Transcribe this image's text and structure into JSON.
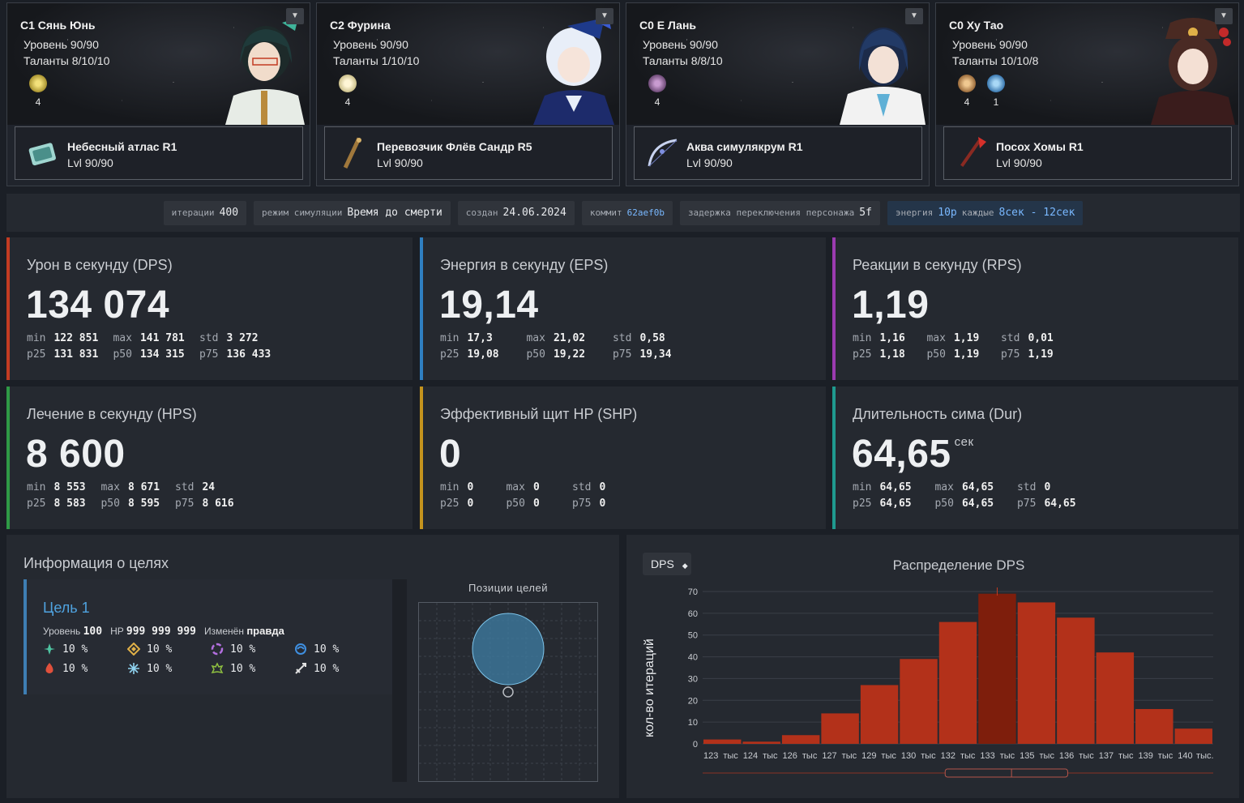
{
  "characters": [
    {
      "name": "C1 Сянь Юнь",
      "level": "Уровень 90/90",
      "talents": "Таланты 8/10/10",
      "sets": [
        {
          "count": "4",
          "color": "#d9c24a"
        }
      ],
      "weapon": {
        "name": "Небесный атлас R1",
        "level": "Lvl 90/90"
      }
    },
    {
      "name": "C2 Фурина",
      "level": "Уровень 90/90",
      "talents": "Таланты 1/10/10",
      "sets": [
        {
          "count": "4",
          "color": "#e8dfb8"
        }
      ],
      "weapon": {
        "name": "Перевозчик Флёв Сандр R5",
        "level": "Lvl 90/90"
      }
    },
    {
      "name": "C0 Е Лань",
      "level": "Уровень 90/90",
      "talents": "Таланты 8/8/10",
      "sets": [
        {
          "count": "4",
          "color": "#a87bb3"
        }
      ],
      "weapon": {
        "name": "Аква симулякрум R1",
        "level": "Lvl 90/90"
      }
    },
    {
      "name": "C0 Ху Тао",
      "level": "Уровень 90/90",
      "talents": "Таланты 10/10/8",
      "sets": [
        {
          "count": "4",
          "color": "#d7a56e"
        },
        {
          "count": "1",
          "color": "#6fb3e6"
        }
      ],
      "weapon": {
        "name": "Посох Хомы R1",
        "level": "Lvl 90/90"
      }
    }
  ],
  "meta": {
    "iterations_label": "итерации",
    "iterations": "400",
    "mode_label": "режим симуляции",
    "mode": "Время до смерти",
    "created_label": "создан",
    "created": "24.06.2024",
    "commit_label": "коммит",
    "commit": "62aef0b",
    "swap_label": "задержка переключения персонажа",
    "swap": "5f",
    "energy_label": "энергия",
    "energy_amount": "10р",
    "energy_every": "каждые",
    "energy_range": "8сек - 12сек"
  },
  "stat_labels": {
    "min": "min",
    "max": "max",
    "std": "std",
    "p25": "p25",
    "p50": "p50",
    "p75": "p75"
  },
  "stats": [
    {
      "title": "Урон в секунду (DPS)",
      "value": "134 074",
      "unit": "",
      "color": "#c23b22",
      "min": "122 851",
      "max": "141 781",
      "std": "3 272",
      "p25": "131 831",
      "p50": "134 315",
      "p75": "136 433"
    },
    {
      "title": "Энергия в секунду (EPS)",
      "value": "19,14",
      "unit": "",
      "color": "#2f7fc1",
      "min": "17,3",
      "max": "21,02",
      "std": "0,58",
      "p25": "19,08",
      "p50": "19,22",
      "p75": "19,34"
    },
    {
      "title": "Реакции в секунду (RPS)",
      "value": "1,19",
      "unit": "",
      "color": "#9b3bb0",
      "min": "1,16",
      "max": "1,19",
      "std": "0,01",
      "p25": "1,18",
      "p50": "1,19",
      "p75": "1,19"
    },
    {
      "title": "Лечение в секунду (HPS)",
      "value": "8 600",
      "unit": "",
      "color": "#2f9a46",
      "min": "8 553",
      "max": "8 671",
      "std": "24",
      "p25": "8 583",
      "p50": "8 595",
      "p75": "8 616"
    },
    {
      "title": "Эффективный щит HP (SHP)",
      "value": "0",
      "unit": "",
      "color": "#c4931d",
      "min": "0",
      "max": "0",
      "std": "0",
      "p25": "0",
      "p50": "0",
      "p75": "0"
    },
    {
      "title": "Длительность сима (Dur)",
      "value": "64,65",
      "unit": "сек",
      "color": "#1f9a8f",
      "min": "64,65",
      "max": "64,65",
      "std": "0",
      "p25": "64,65",
      "p50": "64,65",
      "p75": "64,65"
    }
  ],
  "targets": {
    "title": "Информация о целях",
    "name": "Цель 1",
    "level_label": "Уровень",
    "level": "100",
    "hp_label": "HP",
    "hp": "999 999 999",
    "modified_label": "Изменён",
    "modified": "правда",
    "resistances": [
      {
        "element": "anemo-icon",
        "value": "10 %",
        "color": "#4fc3a1"
      },
      {
        "element": "geo-icon",
        "value": "10 %",
        "color": "#e0b048"
      },
      {
        "element": "electro-icon",
        "value": "10 %",
        "color": "#b36fe0"
      },
      {
        "element": "hydro-icon",
        "value": "10 %",
        "color": "#3f8fe0"
      },
      {
        "element": "pyro-icon",
        "value": "10 %",
        "color": "#e0503c"
      },
      {
        "element": "cryo-icon",
        "value": "10 %",
        "color": "#8fd3f0"
      },
      {
        "element": "dendro-icon",
        "value": "10 %",
        "color": "#8fc040"
      },
      {
        "element": "physical-icon",
        "value": "10 %",
        "color": "#e0e0e0"
      }
    ],
    "positions_title": "Позиции целей"
  },
  "dps_chart": {
    "selector": "DPS",
    "ylabel": "кол-во итераций"
  },
  "chart_data": {
    "type": "bar",
    "title": "Распределение DPS",
    "xlabel": "",
    "ylabel": "кол-во итераций",
    "categories": [
      "123 тыс",
      "124 тыс",
      "126 тыс",
      "127 тыс",
      "129 тыс",
      "130 тыс",
      "132 тыс",
      "133 тыс",
      "135 тыс",
      "136 тыс",
      "137 тыс",
      "139 тыс",
      "140 тыс."
    ],
    "tick_labels": [
      "123",
      "тыс",
      "124",
      "тыс",
      "126",
      "тыс",
      "127",
      "тыс",
      "129",
      "тыс",
      "130",
      "тыс",
      "132",
      "тыс",
      "133",
      "тыс",
      "135",
      "тыс",
      "136",
      "тыс",
      "137",
      "тыс",
      "139",
      "тыс",
      "140",
      "тыс."
    ],
    "values": [
      2,
      1,
      4,
      14,
      27,
      39,
      56,
      69,
      65,
      58,
      42,
      16,
      7
    ],
    "highlight_index": 7,
    "ylim": [
      0,
      70
    ],
    "yticks": [
      0,
      10,
      20,
      30,
      40,
      50,
      60,
      70
    ],
    "colors": {
      "bar": "#b3311a",
      "highlight": "#7e1e0c",
      "grid": "#3a3f47"
    }
  }
}
